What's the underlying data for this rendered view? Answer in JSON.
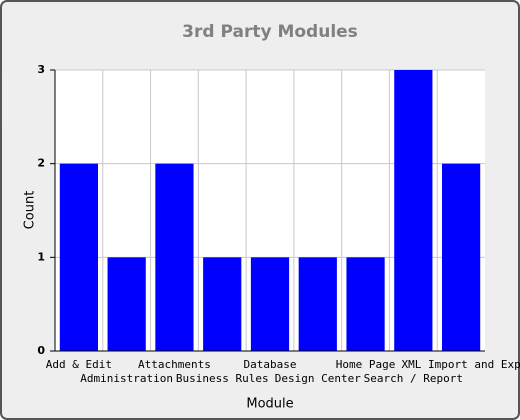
{
  "chart_data": {
    "type": "bar",
    "title": "3rd Party Modules",
    "x_label": "Module",
    "y_label": "Count",
    "categories": [
      "Add & Edit",
      "Administration",
      "Attachments",
      "Business Rules",
      "Database",
      "Design Center",
      "Home Page",
      "Search / Report",
      "XML Import and Exp"
    ],
    "values": [
      2,
      1,
      2,
      1,
      1,
      1,
      1,
      3,
      2
    ],
    "color": "#0000ff",
    "ylim": [
      0,
      3
    ],
    "yticks": [
      0,
      1,
      2,
      3
    ],
    "grid": true
  }
}
